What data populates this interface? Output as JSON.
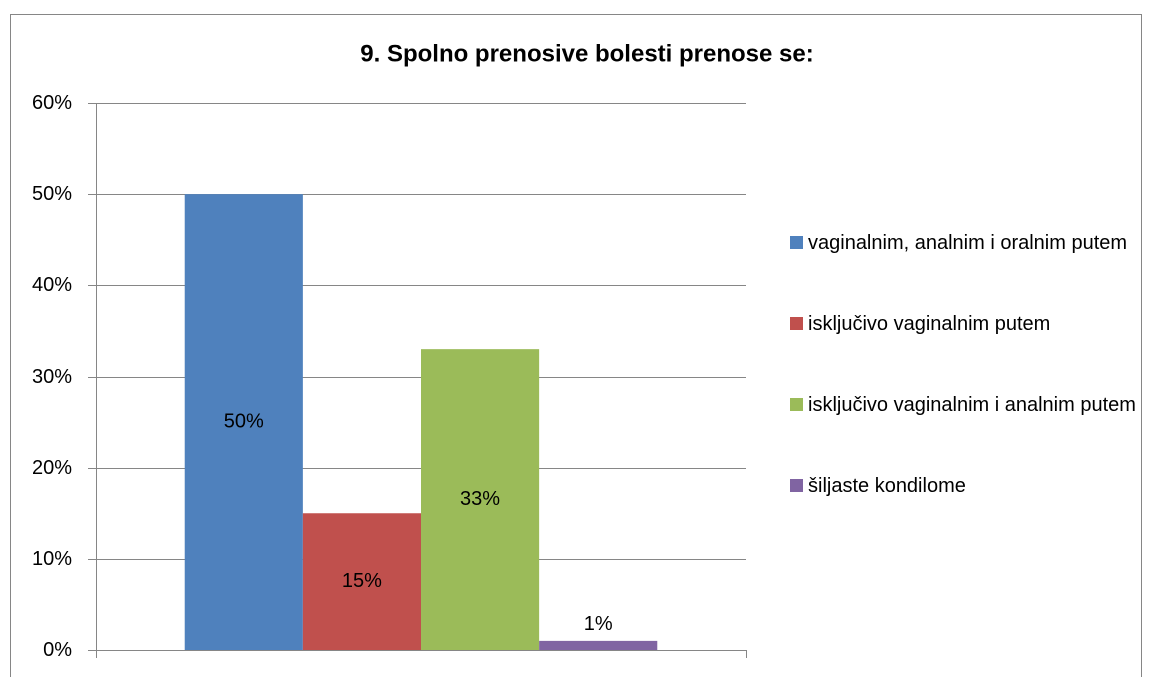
{
  "chart_data": {
    "type": "bar",
    "title": "9. Spolno prenosive bolesti prenose se:",
    "categories": [
      null
    ],
    "series": [
      {
        "name": "vaginalnim, analnim i oralnim putem",
        "color": "#4f81bd",
        "values": [
          50
        ],
        "value_labels": [
          "50%"
        ]
      },
      {
        "name": "isključivo vaginalnim putem",
        "color": "#c0504d",
        "values": [
          15
        ],
        "value_labels": [
          "15%"
        ]
      },
      {
        "name": "isključivo vaginalnim i analnim putem",
        "color": "#9bbb59",
        "values": [
          33
        ],
        "value_labels": [
          "33%"
        ]
      },
      {
        "name": "šiljaste kondilome",
        "color": "#8064a2",
        "values": [
          1
        ],
        "value_labels": [
          "1%"
        ]
      }
    ],
    "ylim": [
      0,
      60
    ],
    "yticks": [
      {
        "value": 0,
        "label": "0%"
      },
      {
        "value": 10,
        "label": "10%"
      },
      {
        "value": 20,
        "label": "20%"
      },
      {
        "value": 30,
        "label": "30%"
      },
      {
        "value": 40,
        "label": "40%"
      },
      {
        "value": 50,
        "label": "50%"
      },
      {
        "value": 60,
        "label": "60%"
      }
    ],
    "grid": true,
    "legend": "right"
  }
}
